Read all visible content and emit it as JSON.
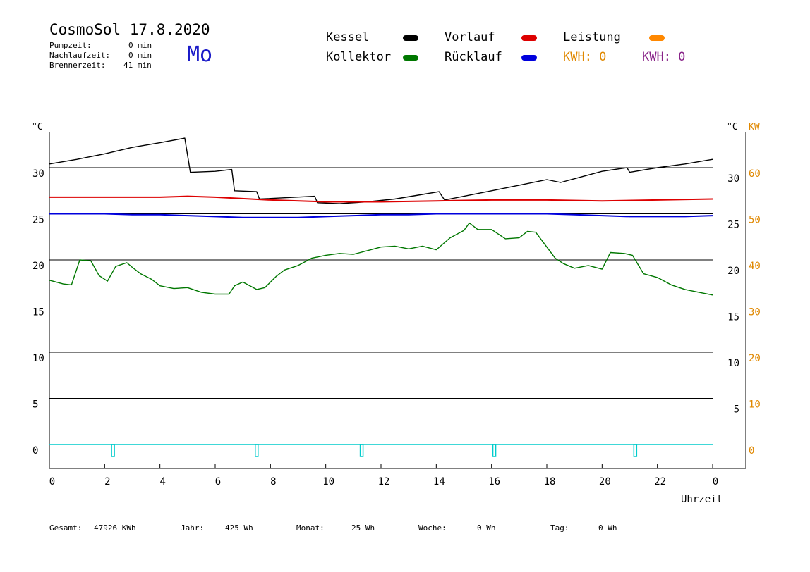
{
  "header": {
    "title": "CosmoSol 17.8.2020",
    "day": "Mo",
    "pumpzeit_label": "Pumpzeit:",
    "pumpzeit_value": "0 min",
    "nachlauf_label": "Nachlaufzeit:",
    "nachlauf_value": "0 min",
    "brenner_label": "Brennerzeit:",
    "brenner_value": "41 min"
  },
  "legend": {
    "kessel": "Kessel",
    "kollektor": "Kollektor",
    "vorlauf": "Vorlauf",
    "ruecklauf": "Rücklauf",
    "leistung": "Leistung",
    "kwh1": "KWH: 0",
    "kwh2": "KWH: 0"
  },
  "colors": {
    "kessel": "#000000",
    "kollektor": "#007700",
    "vorlauf": "#dd0000",
    "ruecklauf": "#0000dd",
    "leistung": "#ff8800",
    "kwh2": "#882288",
    "pump": "#00cccc",
    "orange_axis": "#e08800"
  },
  "footer": {
    "gesamt_label": "Gesamt:",
    "gesamt_value": "47926 KWh",
    "jahr_label": "Jahr:",
    "jahr_value": "425 Wh",
    "monat_label": "Monat:",
    "monat_value": "25 Wh",
    "woche_label": "Woche:",
    "woche_value": "0 Wh",
    "tag_label": "Tag:",
    "tag_value": "0 Wh"
  },
  "chart_data": {
    "type": "line",
    "xlabel": "Uhrzeit",
    "ylabel_left": "°C",
    "ylabel_right": "°C",
    "ylabel_right2": "KW",
    "xlim": [
      0,
      24
    ],
    "ylim": [
      -2.5,
      35
    ],
    "x_ticks": [
      "0",
      "2",
      "4",
      "6",
      "8",
      "10",
      "12",
      "14",
      "16",
      "18",
      "20",
      "22",
      "0"
    ],
    "y_ticks_left": [
      "0",
      "5",
      "10",
      "15",
      "20",
      "25",
      "30"
    ],
    "y_ticks_right": [
      "5",
      "10",
      "15",
      "20",
      "25",
      "30"
    ],
    "y_ticks_right2": [
      "0",
      "10",
      "20",
      "30",
      "40",
      "50",
      "60"
    ],
    "series": [
      {
        "name": "Kessel",
        "color": "#000000",
        "x": [
          0,
          1,
          2,
          3,
          4,
          4.9,
          5.1,
          6,
          6.6,
          6.7,
          7.5,
          7.6,
          9.6,
          9.7,
          10.5,
          11.5,
          12.5,
          13.5,
          14.1,
          14.3,
          15,
          16,
          17,
          18,
          18.5,
          19,
          20,
          20.9,
          21,
          22,
          23,
          24
        ],
        "y": [
          30.4,
          30.9,
          31.5,
          32.2,
          32.7,
          33.2,
          29.5,
          29.6,
          29.8,
          27.5,
          27.4,
          26.6,
          26.9,
          26.2,
          26.1,
          26.3,
          26.6,
          27.1,
          27.4,
          26.5,
          26.9,
          27.5,
          28.1,
          28.7,
          28.4,
          28.8,
          29.6,
          30.0,
          29.5,
          30.0,
          30.4,
          30.9
        ]
      },
      {
        "name": "Vorlauf",
        "color": "#dd0000",
        "x": [
          0,
          2,
          4,
          5,
          6,
          8,
          10,
          12,
          14,
          16,
          18,
          20,
          22,
          24
        ],
        "y": [
          26.8,
          26.8,
          26.8,
          26.9,
          26.8,
          26.5,
          26.3,
          26.3,
          26.4,
          26.5,
          26.5,
          26.4,
          26.5,
          26.6
        ]
      },
      {
        "name": "Rücklauf",
        "color": "#0000dd",
        "x": [
          0,
          1,
          2,
          3,
          4,
          5,
          6,
          7,
          8,
          9,
          10,
          11,
          12,
          13,
          14,
          15,
          16,
          17,
          18,
          19,
          20,
          21,
          22,
          23,
          24
        ],
        "y": [
          25.0,
          25.0,
          25.0,
          24.9,
          24.9,
          24.8,
          24.7,
          24.6,
          24.6,
          24.6,
          24.7,
          24.8,
          24.9,
          24.9,
          25.0,
          25.0,
          25.0,
          25.0,
          25.0,
          24.9,
          24.8,
          24.7,
          24.7,
          24.7,
          24.8
        ]
      },
      {
        "name": "Kollektor",
        "color": "#007700",
        "x": [
          0,
          0.5,
          0.8,
          1.1,
          1.5,
          1.8,
          2.1,
          2.4,
          2.8,
          3.0,
          3.3,
          3.7,
          4.0,
          4.5,
          5.0,
          5.5,
          6.0,
          6.5,
          6.7,
          7.0,
          7.5,
          7.8,
          8.2,
          8.5,
          9.0,
          9.5,
          10.0,
          10.5,
          11.0,
          11.5,
          12.0,
          12.5,
          13.0,
          13.5,
          14.0,
          14.5,
          15.0,
          15.2,
          15.5,
          16.0,
          16.5,
          17.0,
          17.3,
          17.6,
          18.0,
          18.3,
          18.6,
          19.0,
          19.5,
          20.0,
          20.3,
          20.8,
          21.1,
          21.5,
          22.0,
          22.5,
          23.0,
          23.5,
          24.0
        ],
        "y": [
          17.8,
          17.4,
          17.3,
          20.0,
          19.9,
          18.3,
          17.7,
          19.3,
          19.7,
          19.2,
          18.5,
          17.9,
          17.2,
          16.9,
          17.0,
          16.5,
          16.3,
          16.3,
          17.2,
          17.6,
          16.8,
          17.0,
          18.2,
          18.9,
          19.4,
          20.2,
          20.5,
          20.7,
          20.6,
          21.0,
          21.4,
          21.5,
          21.2,
          21.5,
          21.1,
          22.4,
          23.2,
          24.0,
          23.3,
          23.3,
          22.3,
          22.4,
          23.1,
          23.0,
          21.4,
          20.2,
          19.6,
          19.1,
          19.4,
          19.0,
          20.8,
          20.7,
          20.5,
          18.5,
          18.1,
          17.3,
          16.8,
          16.5,
          16.2
        ]
      }
    ],
    "pump_on_hours": [
      2.3,
      7.5,
      11.3,
      16.1,
      21.2
    ]
  }
}
